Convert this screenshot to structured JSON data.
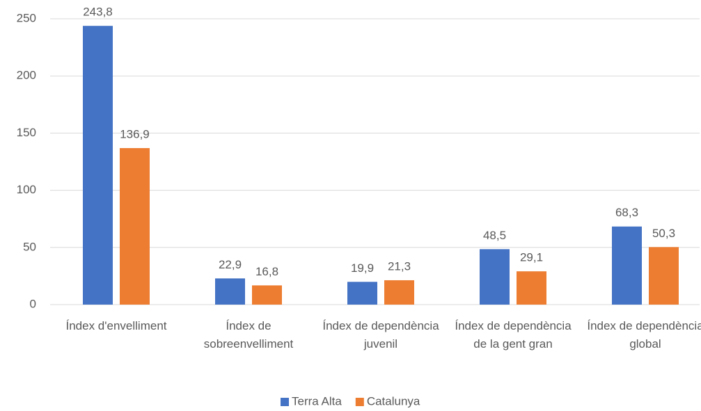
{
  "chart_data": {
    "type": "bar",
    "categories": [
      "Índex d'envelliment",
      "Índex de sobreenvelliment",
      "Índex de dependència juvenil",
      "Índex de dependència de la gent gran",
      "Índex de dependència global"
    ],
    "series": [
      {
        "name": "Terra Alta",
        "color": "#4472c4",
        "values": [
          243.8,
          22.9,
          19.9,
          48.5,
          68.3
        ],
        "value_labels": [
          "243,8",
          "22,9",
          "19,9",
          "48,5",
          "68,3"
        ]
      },
      {
        "name": "Catalunya",
        "color": "#ed7d31",
        "values": [
          136.9,
          16.8,
          21.3,
          29.1,
          50.3
        ],
        "value_labels": [
          "136,9",
          "16,8",
          "21,3",
          "29,1",
          "50,3"
        ]
      }
    ],
    "ylim": [
      0,
      250
    ],
    "yticks": [
      0,
      50,
      100,
      150,
      200,
      250
    ],
    "grid": true,
    "legend": "bottom"
  }
}
